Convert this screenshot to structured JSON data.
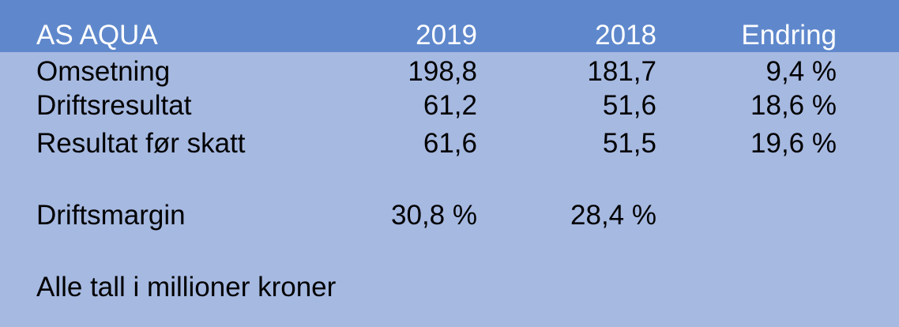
{
  "header": {
    "company": "AS AQUA",
    "col_2019": "2019",
    "col_2018": "2018",
    "col_change": "Endring"
  },
  "rows": [
    {
      "label": "Omsetning",
      "v2019": "198,8",
      "v2018": "181,7",
      "change": "9,4 %"
    },
    {
      "label": "Driftsresultat",
      "v2019": "61,2",
      "v2018": "51,6",
      "change": "18,6 %"
    },
    {
      "label": "Resultat før skatt",
      "v2019": "61,6",
      "v2018": "51,5",
      "change": "19,6 %"
    }
  ],
  "margin": {
    "label": "Driftsmargin",
    "v2019": "30,8 %",
    "v2018": "28,4 %"
  },
  "footnote": "Alle tall i millioner kroner",
  "colors": {
    "header_background": "#5f88cc",
    "body_background": "#a6b9e1",
    "header_text": "#ffffff",
    "body_text": "#000000"
  }
}
